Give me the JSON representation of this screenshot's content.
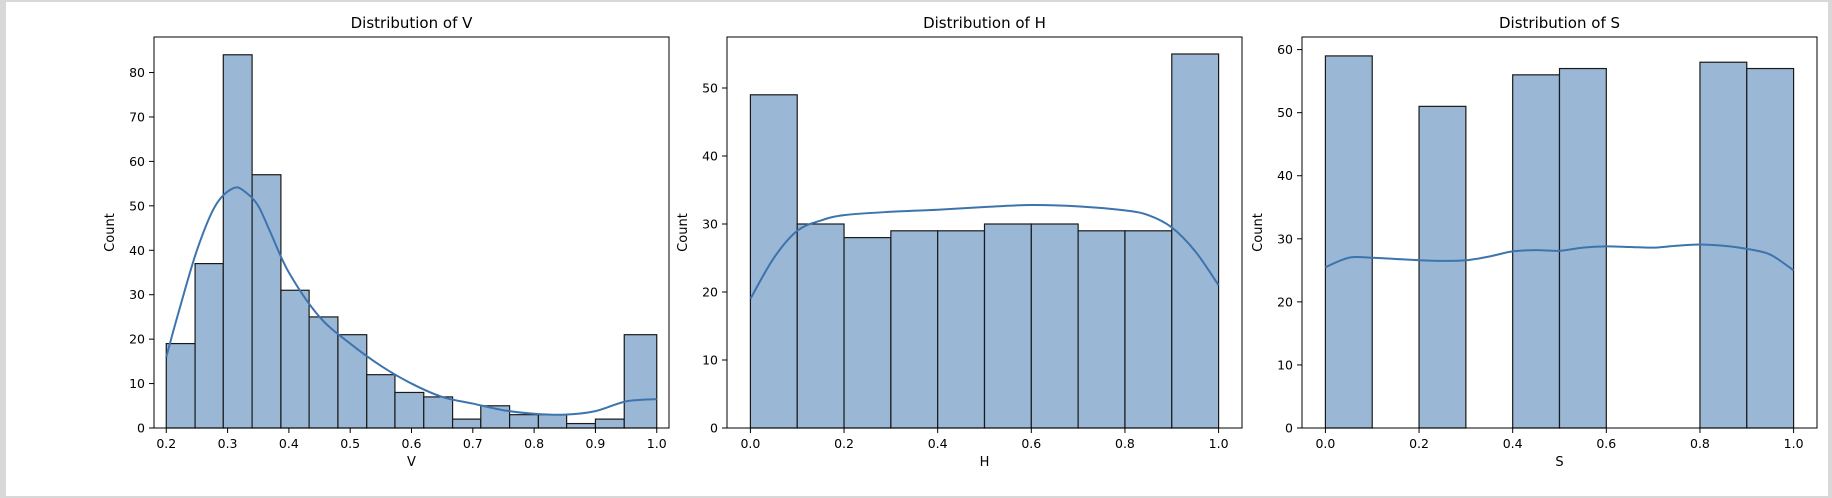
{
  "colors": {
    "bar_fill": "#9ab8d6",
    "bar_edge": "#1a1a1a",
    "kde_line": "#3d74ad"
  },
  "chart_data": [
    {
      "type": "bar",
      "subtype": "histogram-with-kde",
      "title": "Distribution of V",
      "xlabel": "V",
      "ylabel": "Count",
      "xlim": [
        0.18,
        1.02
      ],
      "ylim": [
        0,
        88
      ],
      "xticks": [
        "0.2",
        "0.3",
        "0.4",
        "0.5",
        "0.6",
        "0.7",
        "0.8",
        "0.9",
        "1.0"
      ],
      "yticks": [
        "0",
        "10",
        "20",
        "30",
        "40",
        "50",
        "60",
        "70",
        "80"
      ],
      "bins": [
        {
          "x0": 0.2,
          "x1": 0.247,
          "count": 19
        },
        {
          "x0": 0.247,
          "x1": 0.293,
          "count": 37
        },
        {
          "x0": 0.293,
          "x1": 0.34,
          "count": 84
        },
        {
          "x0": 0.34,
          "x1": 0.387,
          "count": 57
        },
        {
          "x0": 0.387,
          "x1": 0.433,
          "count": 31
        },
        {
          "x0": 0.433,
          "x1": 0.48,
          "count": 25
        },
        {
          "x0": 0.48,
          "x1": 0.527,
          "count": 21
        },
        {
          "x0": 0.527,
          "x1": 0.573,
          "count": 12
        },
        {
          "x0": 0.573,
          "x1": 0.62,
          "count": 8
        },
        {
          "x0": 0.62,
          "x1": 0.667,
          "count": 7
        },
        {
          "x0": 0.667,
          "x1": 0.713,
          "count": 2
        },
        {
          "x0": 0.713,
          "x1": 0.76,
          "count": 5
        },
        {
          "x0": 0.76,
          "x1": 0.807,
          "count": 3
        },
        {
          "x0": 0.807,
          "x1": 0.853,
          "count": 3
        },
        {
          "x0": 0.853,
          "x1": 0.9,
          "count": 1
        },
        {
          "x0": 0.9,
          "x1": 0.947,
          "count": 2
        },
        {
          "x0": 0.947,
          "x1": 1.0,
          "count": 21
        }
      ],
      "kde": {
        "x": [
          0.2,
          0.22,
          0.25,
          0.28,
          0.31,
          0.33,
          0.35,
          0.37,
          0.4,
          0.45,
          0.5,
          0.55,
          0.6,
          0.65,
          0.7,
          0.75,
          0.8,
          0.85,
          0.9,
          0.95,
          1.0
        ],
        "y": [
          16,
          26,
          40,
          50,
          54,
          53,
          50,
          44,
          35,
          25,
          19,
          14,
          10,
          7,
          5.5,
          4,
          3.2,
          3,
          3.8,
          6,
          6.5
        ]
      }
    },
    {
      "type": "bar",
      "subtype": "histogram-with-kde",
      "title": "Distribution of H",
      "xlabel": "H",
      "ylabel": "Count",
      "xlim": [
        -0.05,
        1.05
      ],
      "ylim": [
        0,
        57.5
      ],
      "xticks": [
        "0.0",
        "0.2",
        "0.4",
        "0.6",
        "0.8",
        "1.0"
      ],
      "yticks": [
        "0",
        "10",
        "20",
        "30",
        "40",
        "50"
      ],
      "bins": [
        {
          "x0": 0.0,
          "x1": 0.1,
          "count": 49
        },
        {
          "x0": 0.1,
          "x1": 0.2,
          "count": 30
        },
        {
          "x0": 0.2,
          "x1": 0.3,
          "count": 28
        },
        {
          "x0": 0.3,
          "x1": 0.4,
          "count": 29
        },
        {
          "x0": 0.4,
          "x1": 0.5,
          "count": 29
        },
        {
          "x0": 0.5,
          "x1": 0.6,
          "count": 30
        },
        {
          "x0": 0.6,
          "x1": 0.7,
          "count": 30
        },
        {
          "x0": 0.7,
          "x1": 0.8,
          "count": 29
        },
        {
          "x0": 0.8,
          "x1": 0.9,
          "count": 29
        },
        {
          "x0": 0.9,
          "x1": 1.0,
          "count": 55
        }
      ],
      "kde": {
        "x": [
          0.0,
          0.05,
          0.1,
          0.15,
          0.2,
          0.3,
          0.4,
          0.5,
          0.6,
          0.7,
          0.8,
          0.85,
          0.9,
          0.95,
          1.0
        ],
        "y": [
          19,
          25,
          29,
          30.5,
          31.3,
          31.8,
          32.1,
          32.5,
          32.8,
          32.6,
          32,
          31.3,
          29.5,
          26,
          21
        ]
      }
    },
    {
      "type": "bar",
      "subtype": "histogram-with-kde",
      "title": "Distribution of S",
      "xlabel": "S",
      "ylabel": "Count",
      "xlim": [
        -0.05,
        1.05
      ],
      "ylim": [
        0,
        62
      ],
      "xticks": [
        "0.0",
        "0.2",
        "0.4",
        "0.6",
        "0.8",
        "1.0"
      ],
      "yticks": [
        "0",
        "10",
        "20",
        "30",
        "40",
        "50",
        "60"
      ],
      "bins": [
        {
          "x0": 0.0,
          "x1": 0.1,
          "count": 59
        },
        {
          "x0": 0.1,
          "x1": 0.2,
          "count": 0
        },
        {
          "x0": 0.2,
          "x1": 0.3,
          "count": 51
        },
        {
          "x0": 0.3,
          "x1": 0.4,
          "count": 0
        },
        {
          "x0": 0.4,
          "x1": 0.5,
          "count": 56
        },
        {
          "x0": 0.5,
          "x1": 0.6,
          "count": 57
        },
        {
          "x0": 0.6,
          "x1": 0.7,
          "count": 0
        },
        {
          "x0": 0.7,
          "x1": 0.8,
          "count": 0
        },
        {
          "x0": 0.8,
          "x1": 0.9,
          "count": 58
        },
        {
          "x0": 0.9,
          "x1": 1.0,
          "count": 57
        }
      ],
      "kde": {
        "x": [
          0.0,
          0.05,
          0.1,
          0.15,
          0.2,
          0.25,
          0.3,
          0.35,
          0.4,
          0.45,
          0.5,
          0.55,
          0.6,
          0.65,
          0.7,
          0.75,
          0.8,
          0.85,
          0.9,
          0.95,
          1.0
        ],
        "y": [
          25.5,
          27,
          27,
          26.8,
          26.6,
          26.5,
          26.6,
          27.2,
          28,
          28.2,
          28.1,
          28.6,
          28.8,
          28.7,
          28.6,
          28.9,
          29.1,
          28.9,
          28.4,
          27.5,
          25
        ]
      }
    }
  ]
}
